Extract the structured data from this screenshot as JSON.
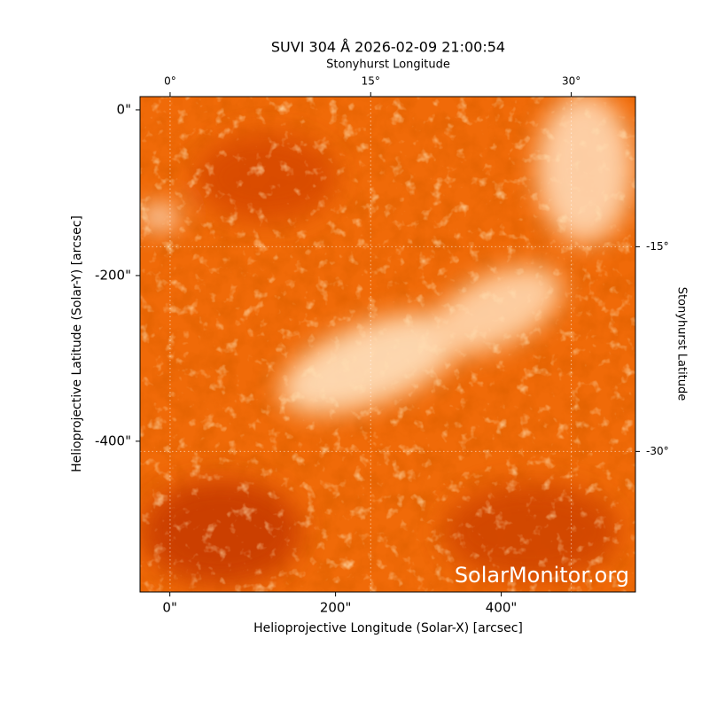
{
  "chart_data": {
    "type": "image",
    "title": "SUVI 304 Å 2026-02-09 21:00:54",
    "xlabel": "Helioprojective Longitude (Solar-X) [arcsec]",
    "ylabel": "Helioprojective Latitude (Solar-Y) [arcsec]",
    "x2label": "Stonyhurst Longitude",
    "y2label": "Stonyhurst Latitude",
    "xlim": [
      -36,
      562
    ],
    "ylim": [
      -582,
      16
    ],
    "xticks": [
      {
        "value": 0,
        "label": "0\""
      },
      {
        "value": 200,
        "label": "200\""
      },
      {
        "value": 400,
        "label": "400\""
      }
    ],
    "yticks": [
      {
        "value": 0,
        "label": "0\""
      },
      {
        "value": -200,
        "label": "-200\""
      },
      {
        "value": -400,
        "label": "-400\""
      }
    ],
    "x2lim": [
      -2.25,
      34.8
    ],
    "x2ticks": [
      {
        "value": 0,
        "label": "0°"
      },
      {
        "value": 15,
        "label": "15°"
      },
      {
        "value": 30,
        "label": "30°"
      }
    ],
    "y2lim": [
      -40.3,
      -4.0
    ],
    "y2ticks": [
      {
        "value": -15,
        "label": "-15°"
      },
      {
        "value": -30,
        "label": "-30°"
      }
    ],
    "grid": true,
    "watermark": "SolarMonitor.org"
  }
}
